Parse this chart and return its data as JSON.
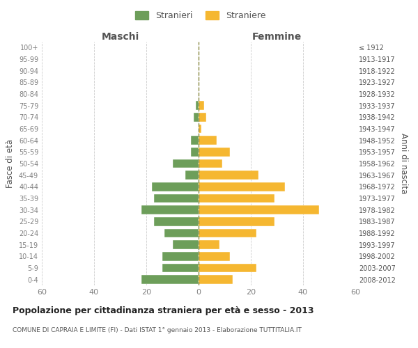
{
  "age_groups": [
    "0-4",
    "5-9",
    "10-14",
    "15-19",
    "20-24",
    "25-29",
    "30-34",
    "35-39",
    "40-44",
    "45-49",
    "50-54",
    "55-59",
    "60-64",
    "65-69",
    "70-74",
    "75-79",
    "80-84",
    "85-89",
    "90-94",
    "95-99",
    "100+"
  ],
  "birth_years": [
    "2008-2012",
    "2003-2007",
    "1998-2002",
    "1993-1997",
    "1988-1992",
    "1983-1987",
    "1978-1982",
    "1973-1977",
    "1968-1972",
    "1963-1967",
    "1958-1962",
    "1953-1957",
    "1948-1952",
    "1943-1947",
    "1938-1942",
    "1933-1937",
    "1928-1932",
    "1923-1927",
    "1918-1922",
    "1913-1917",
    "≤ 1912"
  ],
  "maschi": [
    22,
    14,
    14,
    10,
    13,
    17,
    22,
    17,
    18,
    5,
    10,
    3,
    3,
    0,
    2,
    1,
    0,
    0,
    0,
    0,
    0
  ],
  "femmine": [
    13,
    22,
    12,
    8,
    22,
    29,
    46,
    29,
    33,
    23,
    9,
    12,
    7,
    1,
    3,
    2,
    0,
    0,
    0,
    0,
    0
  ],
  "maschi_color": "#6d9e5a",
  "femmine_color": "#f5b731",
  "background_color": "#ffffff",
  "grid_color": "#cccccc",
  "title": "Popolazione per cittadinanza straniera per età e sesso - 2013",
  "subtitle": "COMUNE DI CAPRAIA E LIMITE (FI) - Dati ISTAT 1° gennaio 2013 - Elaborazione TUTTITALIA.IT",
  "xlabel_left": "Maschi",
  "xlabel_right": "Femmine",
  "ylabel_left": "Fasce di età",
  "ylabel_right": "Anni di nascita",
  "legend_maschi": "Stranieri",
  "legend_femmine": "Straniere",
  "xlim": 60,
  "tick_color": "#808080",
  "label_color": "#555555"
}
